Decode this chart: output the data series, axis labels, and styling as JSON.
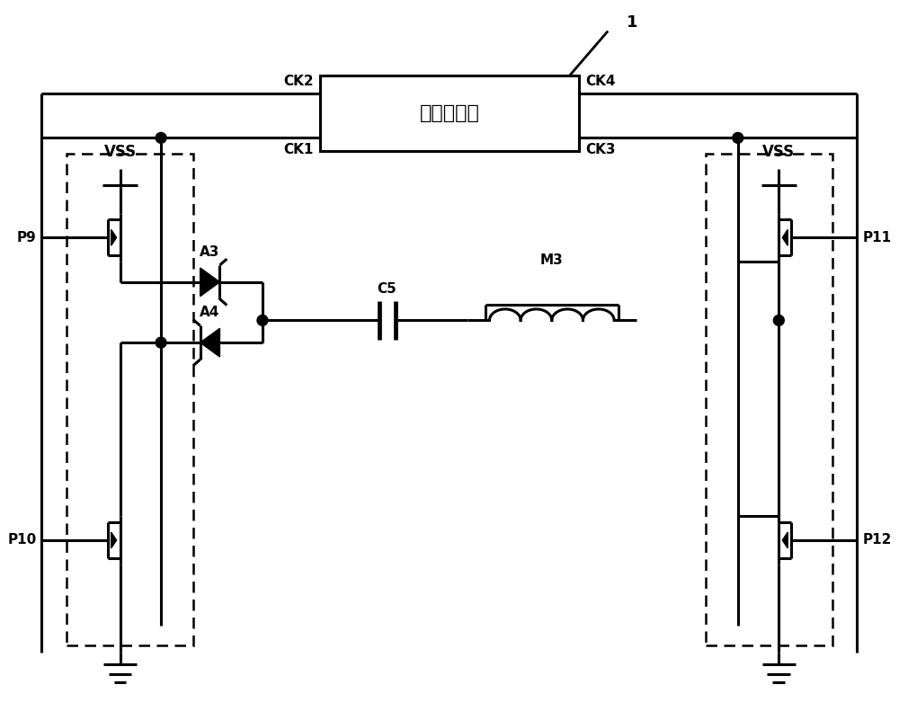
{
  "bg_color": "#ffffff",
  "tc_label": "时序控制器",
  "label_1": "1",
  "label_CK2": "CK2",
  "label_CK1": "CK1",
  "label_CK4": "CK4",
  "label_CK3": "CK3",
  "label_VSS_L": "VSS",
  "label_VSS_R": "VSS",
  "label_P9": "P9",
  "label_P10": "P10",
  "label_P11": "P11",
  "label_P12": "P12",
  "label_A3": "A3",
  "label_A4": "A4",
  "label_C5": "C5",
  "label_M3": "M3",
  "lw": 2.2,
  "lw_dash": 1.8
}
